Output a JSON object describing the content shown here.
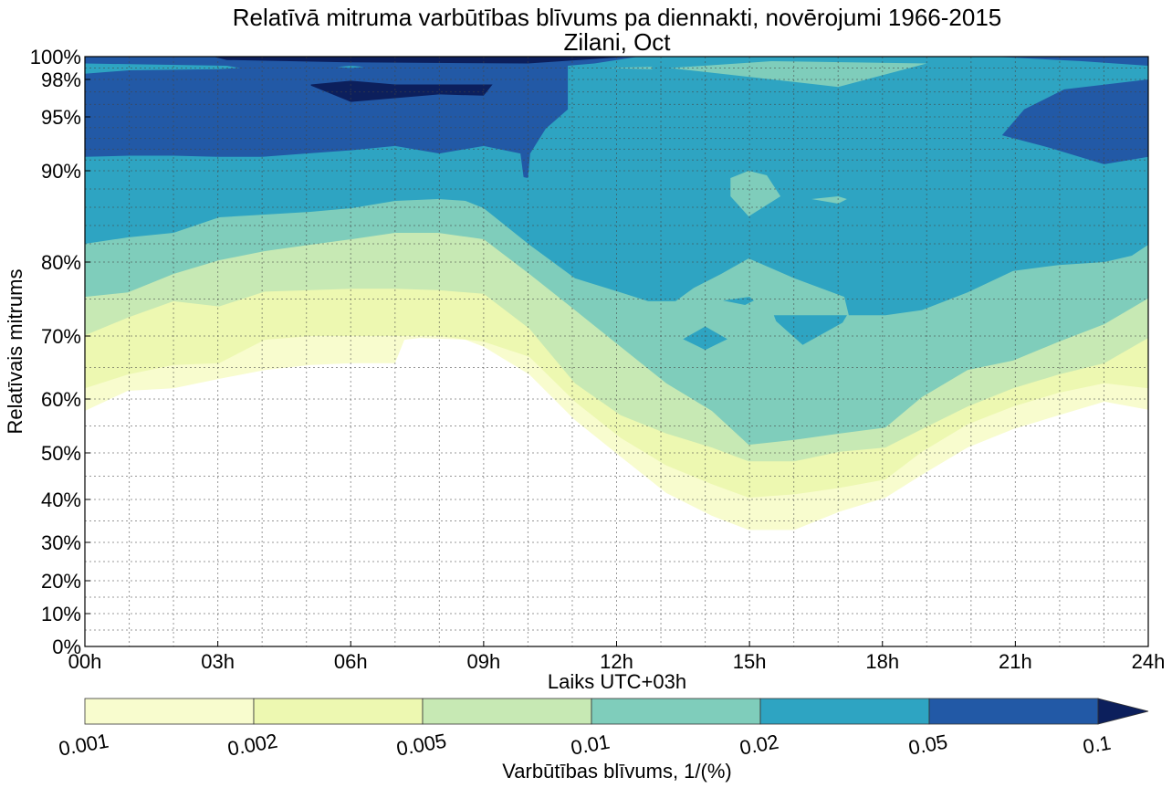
{
  "chart_data": {
    "type": "contour",
    "title": "Relatīvā mitruma varbūtības blīvums pa diennakti, novērojumi 1966-2015",
    "subtitle": "Zilani, Oct",
    "xlabel": "Laiks UTC+03h",
    "ylabel": "Relatīvais mitrums",
    "xlim": [
      0,
      24
    ],
    "ylim": [
      0,
      100
    ],
    "x_ticks": [
      {
        "value": 0,
        "label": "00h"
      },
      {
        "value": 3,
        "label": "03h"
      },
      {
        "value": 6,
        "label": "06h"
      },
      {
        "value": 9,
        "label": "09h"
      },
      {
        "value": 12,
        "label": "12h"
      },
      {
        "value": 15,
        "label": "15h"
      },
      {
        "value": 18,
        "label": "18h"
      },
      {
        "value": 21,
        "label": "21h"
      },
      {
        "value": 24,
        "label": "24h"
      }
    ],
    "y_ticks": [
      {
        "value": 0,
        "label": "0%"
      },
      {
        "value": 10,
        "label": "10%"
      },
      {
        "value": 20,
        "label": "20%"
      },
      {
        "value": 30,
        "label": "30%"
      },
      {
        "value": 40,
        "label": "40%"
      },
      {
        "value": 50,
        "label": "50%"
      },
      {
        "value": 60,
        "label": "60%"
      },
      {
        "value": 70,
        "label": "70%"
      },
      {
        "value": 80,
        "label": "80%"
      },
      {
        "value": 90,
        "label": "90%"
      },
      {
        "value": 95,
        "label": "95%"
      },
      {
        "value": 98,
        "label": "98%"
      },
      {
        "value": 100,
        "label": "100%"
      }
    ],
    "grid": true,
    "colorbar": {
      "label": "Varbūtības blīvums, 1/(%)",
      "levels": [
        "0.001",
        "0.002",
        "0.005",
        "0.01",
        "0.02",
        "0.05",
        "0.1"
      ],
      "colors": [
        "#f8fcce",
        "#edf8b1",
        "#c7e9b4",
        "#7fcdbb",
        "#2ea4c2",
        "#2259a6",
        "#0c1f5c"
      ],
      "extend": "max",
      "placement": "bottom"
    },
    "level_lower_boundaries": [
      {
        "level": "0.001",
        "points": [
          [
            0,
            57.8
          ],
          [
            0.97,
            61.3
          ],
          [
            2,
            61.7
          ],
          [
            3.03,
            63.2
          ],
          [
            4.06,
            64.6
          ],
          [
            5.09,
            65.4
          ],
          [
            6.02,
            65.7
          ],
          [
            7,
            65.7
          ],
          [
            7.21,
            69.4
          ],
          [
            7.56,
            69.7
          ],
          [
            8.59,
            69.4
          ],
          [
            9,
            68.3
          ],
          [
            10.03,
            63.9
          ],
          [
            11.06,
            56.1
          ],
          [
            12.09,
            49.2
          ],
          [
            13.12,
            41.4
          ],
          [
            14.15,
            36.2
          ],
          [
            14.98,
            32.9
          ],
          [
            16.01,
            32.9
          ],
          [
            17.04,
            37.2
          ],
          [
            18.07,
            40.4
          ],
          [
            18.89,
            45.3
          ],
          [
            19.92,
            51
          ],
          [
            20.95,
            54.4
          ],
          [
            21.98,
            57
          ],
          [
            23.01,
            59.5
          ],
          [
            24,
            58
          ]
        ]
      },
      {
        "level": "0.002",
        "points": [
          [
            0,
            61.7
          ],
          [
            0.97,
            63.9
          ],
          [
            2,
            65.4
          ],
          [
            3.03,
            65.7
          ],
          [
            4.06,
            69.4
          ],
          [
            5.09,
            70
          ],
          [
            6.02,
            70
          ],
          [
            7,
            70
          ],
          [
            7.97,
            70
          ],
          [
            9,
            69.1
          ],
          [
            10.03,
            66.7
          ],
          [
            11.06,
            59.5
          ],
          [
            12.09,
            52.8
          ],
          [
            13.12,
            47.3
          ],
          [
            14.15,
            43.3
          ],
          [
            14.98,
            40.4
          ],
          [
            16.01,
            41.1
          ],
          [
            17.04,
            42.5
          ],
          [
            18.07,
            44.3
          ],
          [
            18.89,
            50.2
          ],
          [
            19.92,
            55.3
          ],
          [
            20.95,
            58.6
          ],
          [
            21.98,
            61
          ],
          [
            23.01,
            62.5
          ],
          [
            24,
            61.7
          ]
        ]
      },
      {
        "level": "0.005",
        "points": [
          [
            0,
            70.1
          ],
          [
            0.97,
            72.5
          ],
          [
            2,
            74.7
          ],
          [
            3.03,
            74
          ],
          [
            4.06,
            76
          ],
          [
            5.09,
            76.2
          ],
          [
            6.02,
            76.4
          ],
          [
            7,
            76.4
          ],
          [
            7.97,
            76.2
          ],
          [
            9,
            75.7
          ],
          [
            10.03,
            71
          ],
          [
            11.06,
            62.5
          ],
          [
            12.09,
            57
          ],
          [
            13.12,
            53.6
          ],
          [
            14.15,
            51
          ],
          [
            14.98,
            48.2
          ],
          [
            16.01,
            48.2
          ],
          [
            17.04,
            50.2
          ],
          [
            18.07,
            51
          ],
          [
            18.89,
            54.4
          ],
          [
            19.92,
            58.6
          ],
          [
            20.95,
            61.7
          ],
          [
            21.98,
            63.9
          ],
          [
            23.01,
            65.7
          ],
          [
            24,
            69.7
          ]
        ]
      },
      {
        "level": "0.01",
        "points": [
          [
            0,
            75.3
          ],
          [
            0.97,
            75.9
          ],
          [
            2,
            78.4
          ],
          [
            3.03,
            80.2
          ],
          [
            4.06,
            81.2
          ],
          [
            5.09,
            81.9
          ],
          [
            6.02,
            82.5
          ],
          [
            7,
            83.2
          ],
          [
            7.97,
            83.2
          ],
          [
            9,
            82.5
          ],
          [
            10.03,
            78.4
          ],
          [
            11.06,
            73.5
          ],
          [
            12.09,
            68.3
          ],
          [
            13.12,
            62.5
          ],
          [
            14.15,
            57.8
          ],
          [
            14.98,
            51.5
          ],
          [
            16.01,
            52.4
          ],
          [
            17.04,
            53.6
          ],
          [
            18.07,
            54.7
          ],
          [
            18.89,
            60.3
          ],
          [
            19.92,
            64.6
          ],
          [
            20.95,
            66.1
          ],
          [
            21.98,
            69.1
          ],
          [
            23.01,
            71.6
          ],
          [
            24,
            75.1
          ]
        ]
      },
      {
        "level": "0.02",
        "points": [
          [
            0,
            82
          ],
          [
            0.97,
            82.7
          ],
          [
            2,
            83.2
          ],
          [
            3.03,
            84.9
          ],
          [
            4.06,
            85.2
          ],
          [
            5.09,
            85.5
          ],
          [
            6.02,
            85.9
          ],
          [
            7,
            86.7
          ],
          [
            7.97,
            86.9
          ],
          [
            8.59,
            86.7
          ],
          [
            9,
            85.9
          ],
          [
            10.03,
            81.9
          ],
          [
            11.06,
            77.8
          ],
          [
            12.09,
            75.9
          ],
          [
            12.71,
            74.7
          ],
          [
            13.33,
            74.7
          ],
          [
            13.74,
            76.5
          ],
          [
            14.36,
            78.4
          ],
          [
            14.98,
            80.4
          ],
          [
            16.01,
            77.8
          ],
          [
            17.14,
            75.3
          ],
          [
            17.24,
            72.8
          ],
          [
            18.07,
            72.8
          ],
          [
            18.89,
            73.5
          ],
          [
            19.92,
            75.9
          ],
          [
            20.95,
            78.8
          ],
          [
            21.98,
            79.6
          ],
          [
            23.01,
            80
          ],
          [
            23.63,
            80.7
          ],
          [
            24,
            81.9
          ]
        ]
      }
    ],
    "extra_regions": [
      {
        "level": "0.05",
        "points": [
          [
            0,
            100
          ],
          [
            12.5,
            100
          ],
          [
            11.5,
            99.4
          ],
          [
            10.9,
            99.2
          ],
          [
            10.9,
            95.6
          ],
          [
            10.4,
            93.9
          ],
          [
            10.05,
            91.6
          ],
          [
            10.0,
            89.2
          ],
          [
            9.9,
            89.3
          ],
          [
            9.83,
            91.6
          ],
          [
            9,
            92.3
          ],
          [
            8,
            91.6
          ],
          [
            7,
            92.3
          ],
          [
            6,
            91.9
          ],
          [
            5,
            91.6
          ],
          [
            4,
            91.3
          ],
          [
            3,
            91.3
          ],
          [
            2,
            91.4
          ],
          [
            1,
            91.4
          ],
          [
            0,
            91.3
          ]
        ]
      },
      {
        "level": "0.1",
        "points": [
          [
            2.9,
            100
          ],
          [
            12.3,
            100
          ],
          [
            10,
            99.4
          ],
          [
            6,
            99.5
          ],
          [
            3.2,
            99.7
          ]
        ]
      },
      {
        "level": "0.1",
        "points": [
          [
            5.1,
            97.6
          ],
          [
            6,
            97.9
          ],
          [
            7,
            97.6
          ],
          [
            8,
            97.6
          ],
          [
            9.2,
            97.6
          ],
          [
            9.0,
            96.7
          ],
          [
            8,
            96.8
          ],
          [
            7,
            96.5
          ],
          [
            6,
            96.2
          ],
          [
            5.1,
            97.5
          ]
        ]
      },
      {
        "level": "0.02",
        "points": [
          [
            0,
            99.4
          ],
          [
            3.2,
            99.2
          ],
          [
            3.5,
            99.0
          ],
          [
            3.0,
            98.9
          ],
          [
            1,
            98.8
          ],
          [
            0,
            98.5
          ]
        ]
      },
      {
        "level": "0.02",
        "points": [
          [
            5.7,
            99.1
          ],
          [
            6.0,
            99.2
          ],
          [
            6.3,
            99.1
          ],
          [
            6.0,
            99.0
          ]
        ]
      },
      {
        "level": "0.05",
        "points": [
          [
            20.7,
            93.3
          ],
          [
            21.2,
            95.6
          ],
          [
            22.1,
            97.2
          ],
          [
            24,
            98
          ],
          [
            24,
            91.3
          ],
          [
            23.0,
            90.6
          ],
          [
            21.8,
            92.1
          ]
        ]
      },
      {
        "level": "0.05",
        "points": [
          [
            20.5,
            100
          ],
          [
            24,
            100
          ],
          [
            24,
            99.2
          ],
          [
            22.5,
            99.6
          ]
        ]
      },
      {
        "level": "0.01",
        "points": [
          [
            13.2,
            99.0
          ],
          [
            15.5,
            99.6
          ],
          [
            19,
            99.4
          ],
          [
            17,
            97.4
          ]
        ]
      },
      {
        "level": "0.01",
        "points": [
          [
            11.8,
            99.0
          ],
          [
            12.8,
            99.1
          ],
          [
            12.8,
            98.9
          ]
        ]
      },
      {
        "level": "0.01",
        "points": [
          [
            14.57,
            89.2
          ],
          [
            14.98,
            90
          ],
          [
            15.39,
            89.5
          ],
          [
            15.7,
            87.2
          ],
          [
            14.98,
            85
          ],
          [
            14.57,
            87.2
          ]
        ]
      },
      {
        "level": "0.01",
        "points": [
          [
            16.4,
            86.9
          ],
          [
            17.0,
            87.2
          ],
          [
            17.2,
            86.9
          ],
          [
            17.0,
            86.4
          ]
        ]
      },
      {
        "level": "0.02",
        "points": [
          [
            15.55,
            72.8
          ],
          [
            17.2,
            72.8
          ],
          [
            17.1,
            71.8
          ],
          [
            16.2,
            68.6
          ],
          [
            15.6,
            72.0
          ]
        ]
      },
      {
        "level": "0.02",
        "points": [
          [
            13.5,
            69.5
          ],
          [
            14.0,
            71.3
          ],
          [
            14.5,
            69.5
          ],
          [
            14.0,
            67.8
          ]
        ]
      },
      {
        "level": "0.02",
        "points": [
          [
            14.4,
            74.8
          ],
          [
            15,
            75.3
          ],
          [
            15.1,
            74.8
          ],
          [
            14.9,
            74.2
          ]
        ]
      }
    ]
  }
}
